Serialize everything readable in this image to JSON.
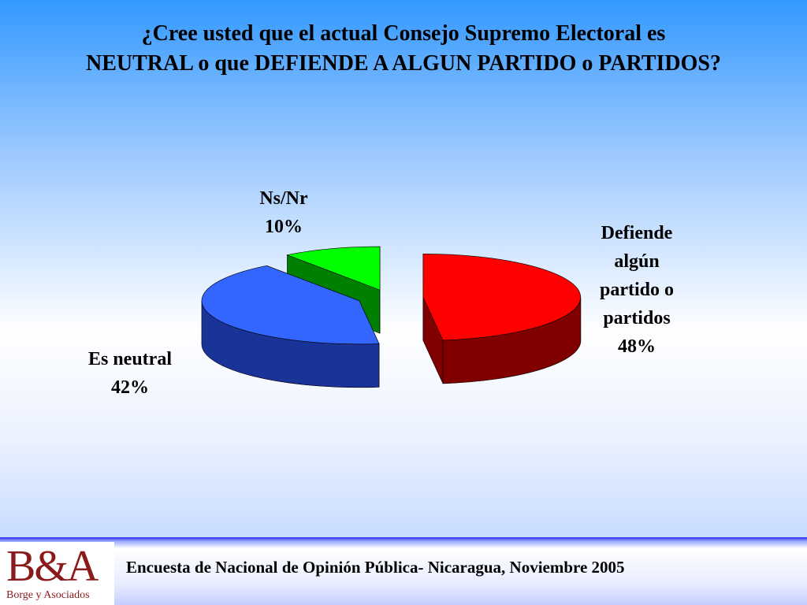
{
  "chart_data": {
    "type": "pie",
    "title": "¿Cree usted que el actual Consejo Supremo Electoral es\nNEUTRAL o que DEFIENDE A ALGUN PARTIDO o PARTIDOS?",
    "categories": [
      "Defiende algún partido o partidos",
      "Es neutral",
      "Ns/Nr"
    ],
    "values": [
      48,
      42,
      10
    ],
    "value_labels": [
      "48%",
      "42%",
      "10%"
    ],
    "colors": [
      "#ff0000",
      "#3366ff",
      "#00ff00"
    ],
    "side_colors": [
      "#800000",
      "#1a3399",
      "#008000"
    ]
  },
  "footer": {
    "text": "Encuesta de Nacional de Opinión Pública- Nicaragua, Noviembre 2005"
  },
  "logo": {
    "mark": "B&A",
    "name": "Borge y Asociados"
  }
}
